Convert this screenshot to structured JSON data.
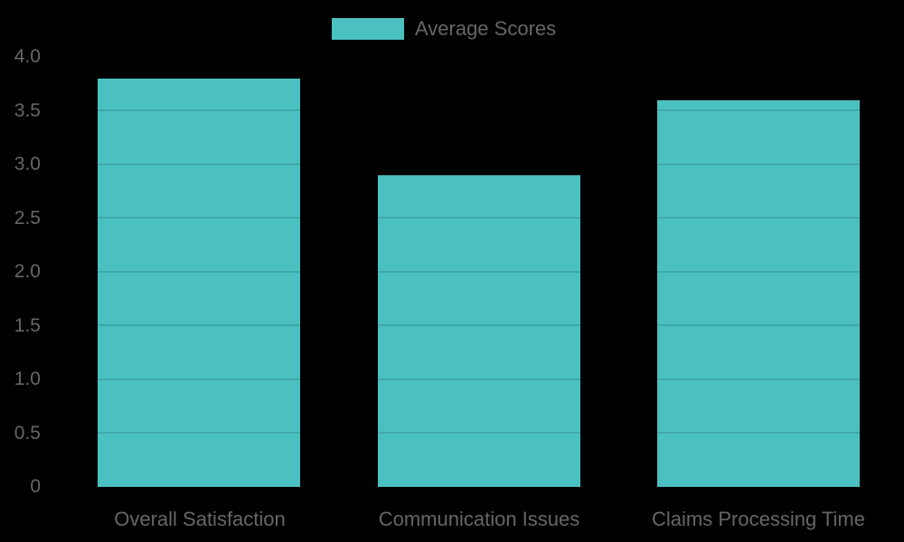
{
  "legend": {
    "label": "Average Scores",
    "color": "#4bc0c0"
  },
  "y_axis": {
    "ticks": [
      "4.0",
      "3.5",
      "3.0",
      "2.5",
      "2.0",
      "1.5",
      "1.0",
      "0.5",
      "0"
    ]
  },
  "x_axis": {
    "labels": [
      "Overall Satisfaction",
      "Communication Issues",
      "Claims Processing Time"
    ]
  },
  "chart_data": {
    "type": "bar",
    "title": "",
    "categories": [
      "Overall Satisfaction",
      "Communication Issues",
      "Claims Processing Time"
    ],
    "series": [
      {
        "name": "Average Scores",
        "values": [
          3.8,
          2.9,
          3.6
        ],
        "color": "#4bc0c0"
      }
    ],
    "xlabel": "",
    "ylabel": "",
    "ylim": [
      0,
      4.0
    ],
    "yticks": [
      0,
      0.5,
      1.0,
      1.5,
      2.0,
      2.5,
      3.0,
      3.5,
      4.0
    ],
    "grid": true,
    "legend_position": "top"
  }
}
